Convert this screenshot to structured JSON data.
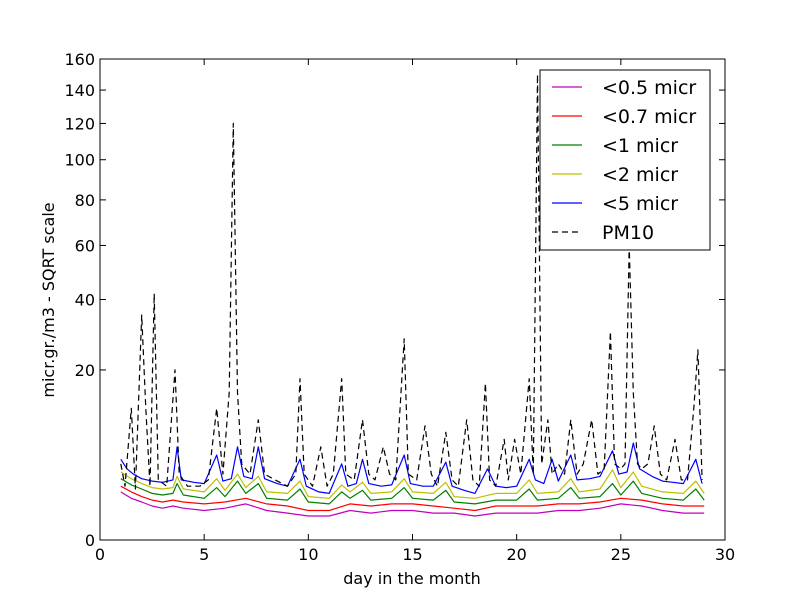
{
  "chart_data": {
    "type": "line",
    "title": "",
    "xlabel": "day in the month",
    "ylabel": "micr.gr./m3 - SQRT scale",
    "xlim": [
      0,
      30
    ],
    "ylim": [
      0,
      160
    ],
    "yscale": "sqrt",
    "grid": false,
    "legend_position": "top-right",
    "xticks": [
      0,
      5,
      10,
      15,
      20,
      25,
      30
    ],
    "xtick_labels": [
      "0",
      "5",
      "10",
      "15",
      "20",
      "25",
      "30"
    ],
    "yticks": [
      0,
      20,
      40,
      60,
      80,
      100,
      120,
      140,
      160
    ],
    "ytick_labels": [
      "0",
      "20",
      "40",
      "60",
      "80",
      "100",
      "120",
      "140",
      "160"
    ],
    "series": [
      {
        "name": "<0.5 micr",
        "color": "#bf00bf",
        "dash": "solid",
        "x": [
          1.0,
          1.5,
          2.0,
          2.5,
          3.0,
          3.5,
          4.0,
          5.0,
          6.0,
          7.0,
          8.0,
          9.0,
          10.0,
          11.0,
          12.0,
          13.0,
          14.0,
          15.0,
          16.0,
          17.0,
          18.0,
          19.0,
          20.0,
          21.0,
          22.0,
          23.0,
          24.0,
          25.0,
          26.0,
          27.0,
          28.0,
          29.0
        ],
        "y": [
          1.6,
          1.2,
          1.0,
          0.8,
          0.7,
          0.8,
          0.7,
          0.6,
          0.7,
          0.9,
          0.6,
          0.5,
          0.4,
          0.4,
          0.6,
          0.5,
          0.6,
          0.6,
          0.5,
          0.5,
          0.4,
          0.5,
          0.5,
          0.5,
          0.6,
          0.6,
          0.7,
          0.9,
          0.8,
          0.6,
          0.5,
          0.5
        ]
      },
      {
        "name": "<0.7 micr",
        "color": "#ff0000",
        "dash": "solid",
        "x": [
          1.0,
          1.5,
          2.0,
          2.5,
          3.0,
          3.5,
          4.0,
          5.0,
          6.0,
          7.0,
          8.0,
          9.0,
          10.0,
          11.0,
          12.0,
          13.0,
          14.0,
          15.0,
          16.0,
          17.0,
          18.0,
          19.0,
          20.0,
          21.0,
          22.0,
          23.0,
          24.0,
          25.0,
          26.0,
          27.0,
          28.0,
          29.0
        ],
        "y": [
          2.0,
          1.6,
          1.3,
          1.1,
          1.0,
          1.1,
          1.0,
          0.9,
          1.0,
          1.2,
          0.9,
          0.8,
          0.6,
          0.6,
          0.9,
          0.8,
          0.9,
          0.9,
          0.8,
          0.7,
          0.6,
          0.8,
          0.8,
          0.8,
          0.9,
          0.9,
          1.0,
          1.2,
          1.1,
          0.9,
          0.8,
          0.8
        ]
      },
      {
        "name": "<1 micr",
        "color": "#008000",
        "dash": "solid",
        "x": [
          1.0,
          1.5,
          2.0,
          2.5,
          3.0,
          3.5,
          3.7,
          4.0,
          5.0,
          5.6,
          6.0,
          6.6,
          7.0,
          7.6,
          8.0,
          9.0,
          9.6,
          10.0,
          11.0,
          11.6,
          12.0,
          12.6,
          13.0,
          14.0,
          14.6,
          15.0,
          16.0,
          16.6,
          17.0,
          18.0,
          19.0,
          20.0,
          20.6,
          21.0,
          22.0,
          22.6,
          23.0,
          24.0,
          24.6,
          25.0,
          25.6,
          26.0,
          27.0,
          28.0,
          28.6,
          29.0
        ],
        "y": [
          2.6,
          2.1,
          1.8,
          1.5,
          1.4,
          1.5,
          2.2,
          1.4,
          1.2,
          1.9,
          1.3,
          2.4,
          1.5,
          2.2,
          1.2,
          1.1,
          1.8,
          1.0,
          0.9,
          1.6,
          1.2,
          1.7,
          1.1,
          1.2,
          1.9,
          1.2,
          1.1,
          1.7,
          1.0,
          0.9,
          1.1,
          1.1,
          1.8,
          1.1,
          1.2,
          1.9,
          1.2,
          1.3,
          2.2,
          1.4,
          2.4,
          1.5,
          1.2,
          1.1,
          1.8,
          1.1
        ]
      },
      {
        "name": "<2 micr",
        "color": "#bfbf00",
        "dash": "solid",
        "x": [
          1.0,
          1.5,
          2.0,
          2.5,
          3.0,
          3.5,
          3.7,
          4.0,
          5.0,
          5.6,
          6.0,
          6.6,
          7.0,
          7.6,
          8.0,
          9.0,
          9.6,
          10.0,
          11.0,
          11.6,
          12.0,
          12.6,
          13.0,
          14.0,
          14.6,
          15.0,
          16.0,
          16.6,
          17.0,
          18.0,
          19.0,
          20.0,
          20.6,
          21.0,
          22.0,
          22.6,
          23.0,
          24.0,
          24.6,
          25.0,
          25.6,
          26.0,
          27.0,
          28.0,
          28.6,
          29.0
        ],
        "y": [
          3.2,
          2.6,
          2.2,
          1.9,
          1.8,
          1.9,
          2.8,
          1.8,
          1.6,
          2.6,
          1.7,
          3.0,
          1.9,
          2.8,
          1.6,
          1.5,
          2.4,
          1.3,
          1.2,
          2.1,
          1.6,
          2.3,
          1.5,
          1.6,
          2.6,
          1.6,
          1.5,
          2.3,
          1.3,
          1.2,
          1.5,
          1.5,
          2.5,
          1.5,
          1.6,
          2.6,
          1.6,
          1.8,
          3.4,
          1.9,
          3.2,
          2.0,
          1.6,
          1.5,
          2.4,
          1.5
        ]
      },
      {
        "name": "<5 micr",
        "color": "#0000ff",
        "dash": "solid",
        "x": [
          1.0,
          1.3,
          1.6,
          2.0,
          2.5,
          3.0,
          3.5,
          3.7,
          3.9,
          4.5,
          5.0,
          5.6,
          5.9,
          6.3,
          6.6,
          6.9,
          7.3,
          7.6,
          7.9,
          8.5,
          9.0,
          9.6,
          9.9,
          10.5,
          11.0,
          11.6,
          11.9,
          12.3,
          12.6,
          12.9,
          13.5,
          14.0,
          14.6,
          14.9,
          15.5,
          16.0,
          16.6,
          16.9,
          17.5,
          18.0,
          18.6,
          19.0,
          19.5,
          20.0,
          20.6,
          20.9,
          21.3,
          21.7,
          22.0,
          22.6,
          22.9,
          23.5,
          24.0,
          24.6,
          24.9,
          25.3,
          25.6,
          25.9,
          26.5,
          27.0,
          27.5,
          28.0,
          28.6,
          28.9
        ],
        "y": [
          4.5,
          3.5,
          3.0,
          2.6,
          2.4,
          2.3,
          2.5,
          6.0,
          2.5,
          2.3,
          2.2,
          5.0,
          2.4,
          2.6,
          6.0,
          2.8,
          2.6,
          6.0,
          2.6,
          2.2,
          2.0,
          4.5,
          2.0,
          1.6,
          1.5,
          4.0,
          2.0,
          2.2,
          4.5,
          2.2,
          2.0,
          2.1,
          5.0,
          2.2,
          2.0,
          2.0,
          4.2,
          2.0,
          1.7,
          1.5,
          3.5,
          2.0,
          1.9,
          2.0,
          4.5,
          2.5,
          2.2,
          4.5,
          2.4,
          5.0,
          2.5,
          2.6,
          2.8,
          5.5,
          3.0,
          3.2,
          6.5,
          3.5,
          2.8,
          2.4,
          2.3,
          2.2,
          4.5,
          2.2
        ]
      },
      {
        "name": "PM10",
        "color": "#000000",
        "dash": "dashed",
        "x": [
          1.0,
          1.2,
          1.5,
          1.7,
          2.0,
          2.2,
          2.4,
          2.6,
          2.8,
          3.2,
          3.6,
          3.8,
          4.2,
          4.8,
          5.2,
          5.6,
          5.9,
          6.2,
          6.4,
          6.6,
          6.8,
          7.2,
          7.6,
          7.9,
          8.4,
          9.0,
          9.4,
          9.6,
          9.8,
          10.2,
          10.6,
          10.9,
          11.2,
          11.6,
          11.8,
          12.2,
          12.6,
          12.9,
          13.2,
          13.6,
          13.9,
          14.2,
          14.6,
          14.8,
          15.2,
          15.6,
          15.9,
          16.2,
          16.6,
          16.9,
          17.2,
          17.6,
          17.9,
          18.2,
          18.5,
          18.7,
          19.0,
          19.4,
          19.6,
          19.9,
          20.2,
          20.6,
          20.8,
          21.0,
          21.2,
          21.5,
          21.7,
          22.0,
          22.3,
          22.6,
          22.9,
          23.2,
          23.6,
          23.9,
          24.2,
          24.5,
          24.7,
          25.0,
          25.2,
          25.4,
          25.6,
          25.8,
          26.0,
          26.3,
          26.6,
          26.9,
          27.2,
          27.6,
          27.9,
          28.2,
          28.5,
          28.7,
          28.9
        ],
        "y": [
          4.0,
          2.0,
          12.0,
          1.8,
          35.0,
          12.0,
          2.0,
          42.0,
          2.5,
          2.0,
          20.0,
          3.0,
          2.0,
          2.0,
          2.5,
          12.0,
          3.0,
          15.0,
          120.0,
          15.0,
          4.0,
          3.0,
          10.0,
          3.0,
          2.5,
          2.0,
          3.0,
          18.0,
          3.0,
          2.0,
          6.0,
          2.0,
          3.0,
          18.0,
          3.0,
          2.5,
          10.0,
          3.0,
          2.5,
          6.0,
          3.0,
          2.5,
          28.0,
          3.0,
          2.5,
          9.0,
          3.0,
          2.0,
          8.0,
          2.5,
          2.0,
          10.0,
          2.5,
          2.0,
          17.0,
          2.5,
          2.0,
          7.0,
          2.5,
          7.0,
          3.0,
          18.0,
          3.0,
          150.0,
          4.0,
          10.0,
          3.0,
          4.0,
          3.0,
          10.0,
          3.0,
          4.0,
          10.0,
          3.0,
          3.5,
          30.0,
          4.0,
          3.5,
          4.0,
          60.0,
          15.0,
          4.0,
          3.5,
          4.0,
          9.0,
          3.0,
          2.5,
          7.0,
          2.5,
          2.5,
          12.0,
          25.0,
          2.5
        ]
      }
    ]
  }
}
